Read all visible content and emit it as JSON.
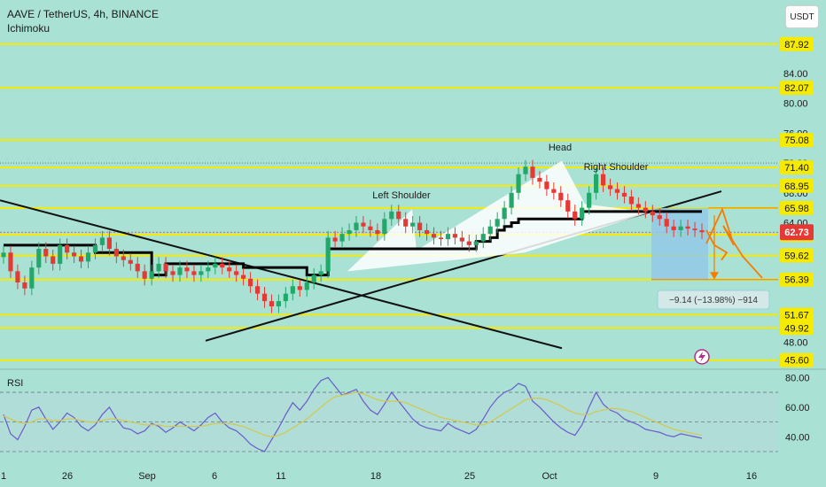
{
  "header": {
    "symbol_line": "AAVE / TetherUS, 4h, BINANCE",
    "indicator": "Ichimoku"
  },
  "currency_button": "USDT",
  "colors": {
    "background": "#a9e2d4",
    "level_line": "#f5ea00",
    "up_candle": "#22a86a",
    "down_candle": "#e53935",
    "kijun": "#000000",
    "price_tag": "#e53935",
    "projection": "#f57c00",
    "measure_box": "#93c9e6",
    "rsi_line": "#6a5acd",
    "rsi_ma": "#d4c84a"
  },
  "chart_data": [
    {
      "type": "candlestick",
      "title": "AAVE / TetherUS, 4h, BINANCE",
      "x_tick_labels": [
        "1",
        "26",
        "Sep",
        "6",
        "11",
        "18",
        "25",
        "Oct",
        "9",
        "16"
      ],
      "y_tick_labels": [
        84.0,
        80.0,
        76.0,
        72.0,
        68.0,
        64.0,
        48.0
      ],
      "ylim": [
        44.5,
        90.5
      ],
      "current_price": 62.73,
      "horizontal_levels": [
        87.92,
        82.07,
        75.08,
        71.4,
        68.95,
        65.98,
        62.39,
        59.62,
        56.39,
        51.67,
        49.92,
        45.6
      ],
      "dotted_levels": [
        72.0
      ],
      "annotations": [
        "Left Shoulder",
        "Head",
        "Right Shoulder"
      ],
      "measure_label": "−9.14 (−13.98%) −914",
      "close_series": [
        60.0,
        57.5,
        56.0,
        55.2,
        58.0,
        60.5,
        59.5,
        58.5,
        61.0,
        60.0,
        59.5,
        58.8,
        60.0,
        61.0,
        62.0,
        60.5,
        59.5,
        59.0,
        58.5,
        57.5,
        56.5,
        57.5,
        58.5,
        57.5,
        57.0,
        58.0,
        57.5,
        57.0,
        57.5,
        58.0,
        58.5,
        58.0,
        57.5,
        57.0,
        56.5,
        55.5,
        54.5,
        53.5,
        52.8,
        53.5,
        54.5,
        55.5,
        55.0,
        56.0,
        57.0,
        57.5,
        62.0,
        61.5,
        62.5,
        63.0,
        64.0,
        63.5,
        63.0,
        62.5,
        64.5,
        65.5,
        64.5,
        63.5,
        64.0,
        63.0,
        62.5,
        62.0,
        61.8,
        62.5,
        62.0,
        61.5,
        61.0,
        61.5,
        62.5,
        63.5,
        64.5,
        66.0,
        68.0,
        70.5,
        71.5,
        70.0,
        69.5,
        68.5,
        68.0,
        67.0,
        65.5,
        64.5,
        66.0,
        68.0,
        70.5,
        69.0,
        68.5,
        68.0,
        67.5,
        66.5,
        66.0,
        65.5,
        65.0,
        64.5,
        63.5,
        63.0,
        63.5,
        63.2,
        63.0,
        62.73
      ],
      "kijun_series": [
        61.0,
        61.0,
        61.0,
        61.0,
        61.0,
        61.0,
        61.0,
        61.0,
        61.0,
        61.0,
        61.0,
        61.0,
        61.0,
        60.0,
        60.0,
        60.0,
        60.0,
        60.0,
        60.0,
        60.0,
        60.0,
        57.0,
        57.0,
        58.5,
        58.5,
        58.5,
        58.5,
        58.5,
        58.5,
        58.5,
        58.5,
        58.5,
        58.5,
        58.5,
        58.0,
        58.0,
        58.0,
        58.0,
        58.0,
        58.0,
        58.0,
        58.0,
        58.0,
        57.0,
        57.0,
        57.0,
        60.5,
        60.5,
        60.5,
        60.5,
        60.5,
        60.5,
        60.5,
        60.5,
        60.5,
        60.5,
        60.5,
        60.5,
        60.5,
        60.5,
        60.5,
        60.5,
        60.5,
        60.5,
        60.5,
        60.5,
        60.5,
        61.5,
        61.5,
        62.0,
        63.0,
        63.5,
        64.0,
        64.5,
        64.5,
        64.5,
        64.5,
        64.5,
        64.5,
        64.5,
        64.5,
        64.5,
        65.5,
        65.5,
        65.5,
        65.5,
        65.5,
        65.5,
        65.5,
        65.5,
        65.5,
        65.5,
        65.5,
        65.5,
        65.5,
        65.5,
        65.5,
        65.5,
        65.5,
        65.5
      ]
    },
    {
      "type": "line",
      "title": "RSI",
      "y_tick_labels": [
        80.0,
        60.0,
        40.0
      ],
      "ylim": [
        27,
        85
      ],
      "reference_levels": [
        70,
        50,
        30
      ],
      "series": [
        {
          "values": [
            55,
            42,
            38,
            47,
            58,
            60,
            52,
            45,
            50,
            56,
            53,
            47,
            44,
            48,
            55,
            60,
            52,
            46,
            45,
            42,
            44,
            49,
            47,
            43,
            46,
            50,
            47,
            44,
            48,
            53,
            56,
            50,
            46,
            44,
            40,
            35,
            32,
            30,
            38,
            46,
            55,
            63,
            58,
            64,
            72,
            78,
            80,
            74,
            68,
            70,
            72,
            64,
            58,
            55,
            62,
            70,
            64,
            58,
            52,
            48,
            46,
            45,
            44,
            49,
            46,
            44,
            42,
            45,
            52,
            60,
            66,
            70,
            72,
            76,
            74,
            64,
            60,
            55,
            50,
            46,
            43,
            41,
            48,
            60,
            70,
            62,
            58,
            56,
            52,
            50,
            48,
            45,
            44,
            43,
            41,
            40,
            42,
            41,
            40,
            39
          ]
        },
        {
          "values": [
            54,
            52,
            50,
            49,
            50,
            52,
            52,
            51,
            51,
            52,
            52,
            51,
            50,
            50,
            51,
            52,
            52,
            51,
            50,
            49,
            48,
            48,
            48,
            47,
            47,
            47,
            47,
            47,
            47,
            48,
            49,
            49,
            49,
            48,
            47,
            45,
            43,
            41,
            40,
            41,
            43,
            46,
            49,
            52,
            56,
            60,
            64,
            67,
            68,
            69,
            70,
            69,
            67,
            65,
            64,
            64,
            64,
            63,
            61,
            59,
            57,
            55,
            53,
            52,
            51,
            50,
            49,
            48,
            48,
            50,
            53,
            56,
            59,
            62,
            65,
            66,
            66,
            65,
            63,
            61,
            58,
            56,
            55,
            55,
            57,
            58,
            59,
            59,
            58,
            57,
            55,
            53,
            51,
            49,
            47,
            45,
            44,
            43,
            42,
            41
          ]
        }
      ]
    }
  ]
}
